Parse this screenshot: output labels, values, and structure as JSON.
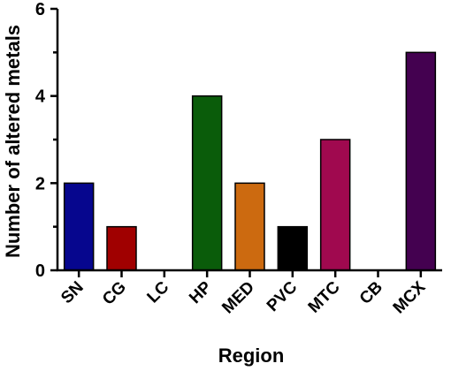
{
  "chart_data": {
    "type": "bar",
    "categories": [
      "SN",
      "CG",
      "LC",
      "HP",
      "MED",
      "PVC",
      "MTC",
      "CB",
      "MCX"
    ],
    "values": [
      2,
      1,
      0,
      4,
      2,
      1,
      3,
      0,
      5
    ],
    "colors": [
      "#06068e",
      "#a00000",
      "#ffffff",
      "#0a5c0a",
      "#cc6a10",
      "#000000",
      "#a0094f",
      "#ffffff",
      "#440150"
    ],
    "xlabel": "Region",
    "ylabel": "Number of altered metals",
    "ylim": [
      0,
      6
    ],
    "yticks": [
      0,
      2,
      4,
      6
    ],
    "grid": false
  }
}
